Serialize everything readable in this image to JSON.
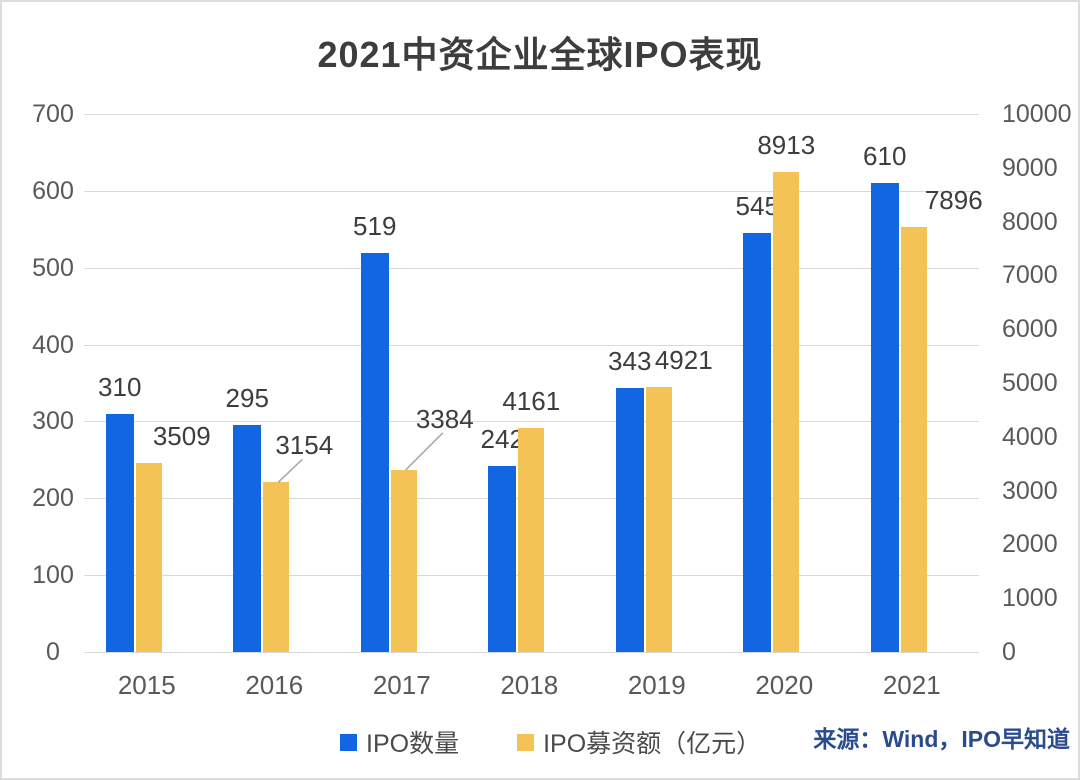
{
  "chart_data": {
    "type": "bar",
    "title": "2021中资企业全球IPO表现",
    "categories": [
      "2015",
      "2016",
      "2017",
      "2018",
      "2019",
      "2020",
      "2021"
    ],
    "series": [
      {
        "name": "IPO数量",
        "axis": "left",
        "color": "#1266e2",
        "values": [
          310,
          295,
          519,
          242,
          343,
          545,
          610
        ]
      },
      {
        "name": "IPO募资额（亿元）",
        "axis": "right",
        "color": "#f4c355",
        "values": [
          3509,
          3154,
          3384,
          4161,
          4921,
          8913,
          7896
        ],
        "label_offsets": [
          {
            "dx": 33,
            "dy": 0,
            "callout": false
          },
          {
            "dx": 28,
            "dy": -10,
            "callout": true
          },
          {
            "dx": 41,
            "dy": -24,
            "callout": true
          },
          {
            "dx": 0,
            "dy": 0,
            "callout": false
          },
          {
            "dx": 25,
            "dy": 0,
            "callout": false
          },
          {
            "dx": 0,
            "dy": 0,
            "callout": false
          },
          {
            "dx": 40,
            "dy": 0,
            "callout": false
          }
        ]
      }
    ],
    "axes": {
      "left": {
        "min": 0,
        "max": 700,
        "step": 100,
        "ticks": [
          0,
          100,
          200,
          300,
          400,
          500,
          600,
          700
        ]
      },
      "right": {
        "min": 0,
        "max": 10000,
        "step": 1000,
        "ticks": [
          0,
          1000,
          2000,
          3000,
          4000,
          5000,
          6000,
          7000,
          8000,
          9000,
          10000
        ]
      }
    },
    "grid": true,
    "legend_position": "bottom",
    "source": "来源：Wind，IPO早知道",
    "colors": {
      "grid": "#d9d9d9",
      "tick_text": "#595959",
      "data_label": "#3d3d3d",
      "title": "#3d3d3d",
      "source": "#2a4b8d",
      "callout_line": "#a6a6a6"
    }
  }
}
